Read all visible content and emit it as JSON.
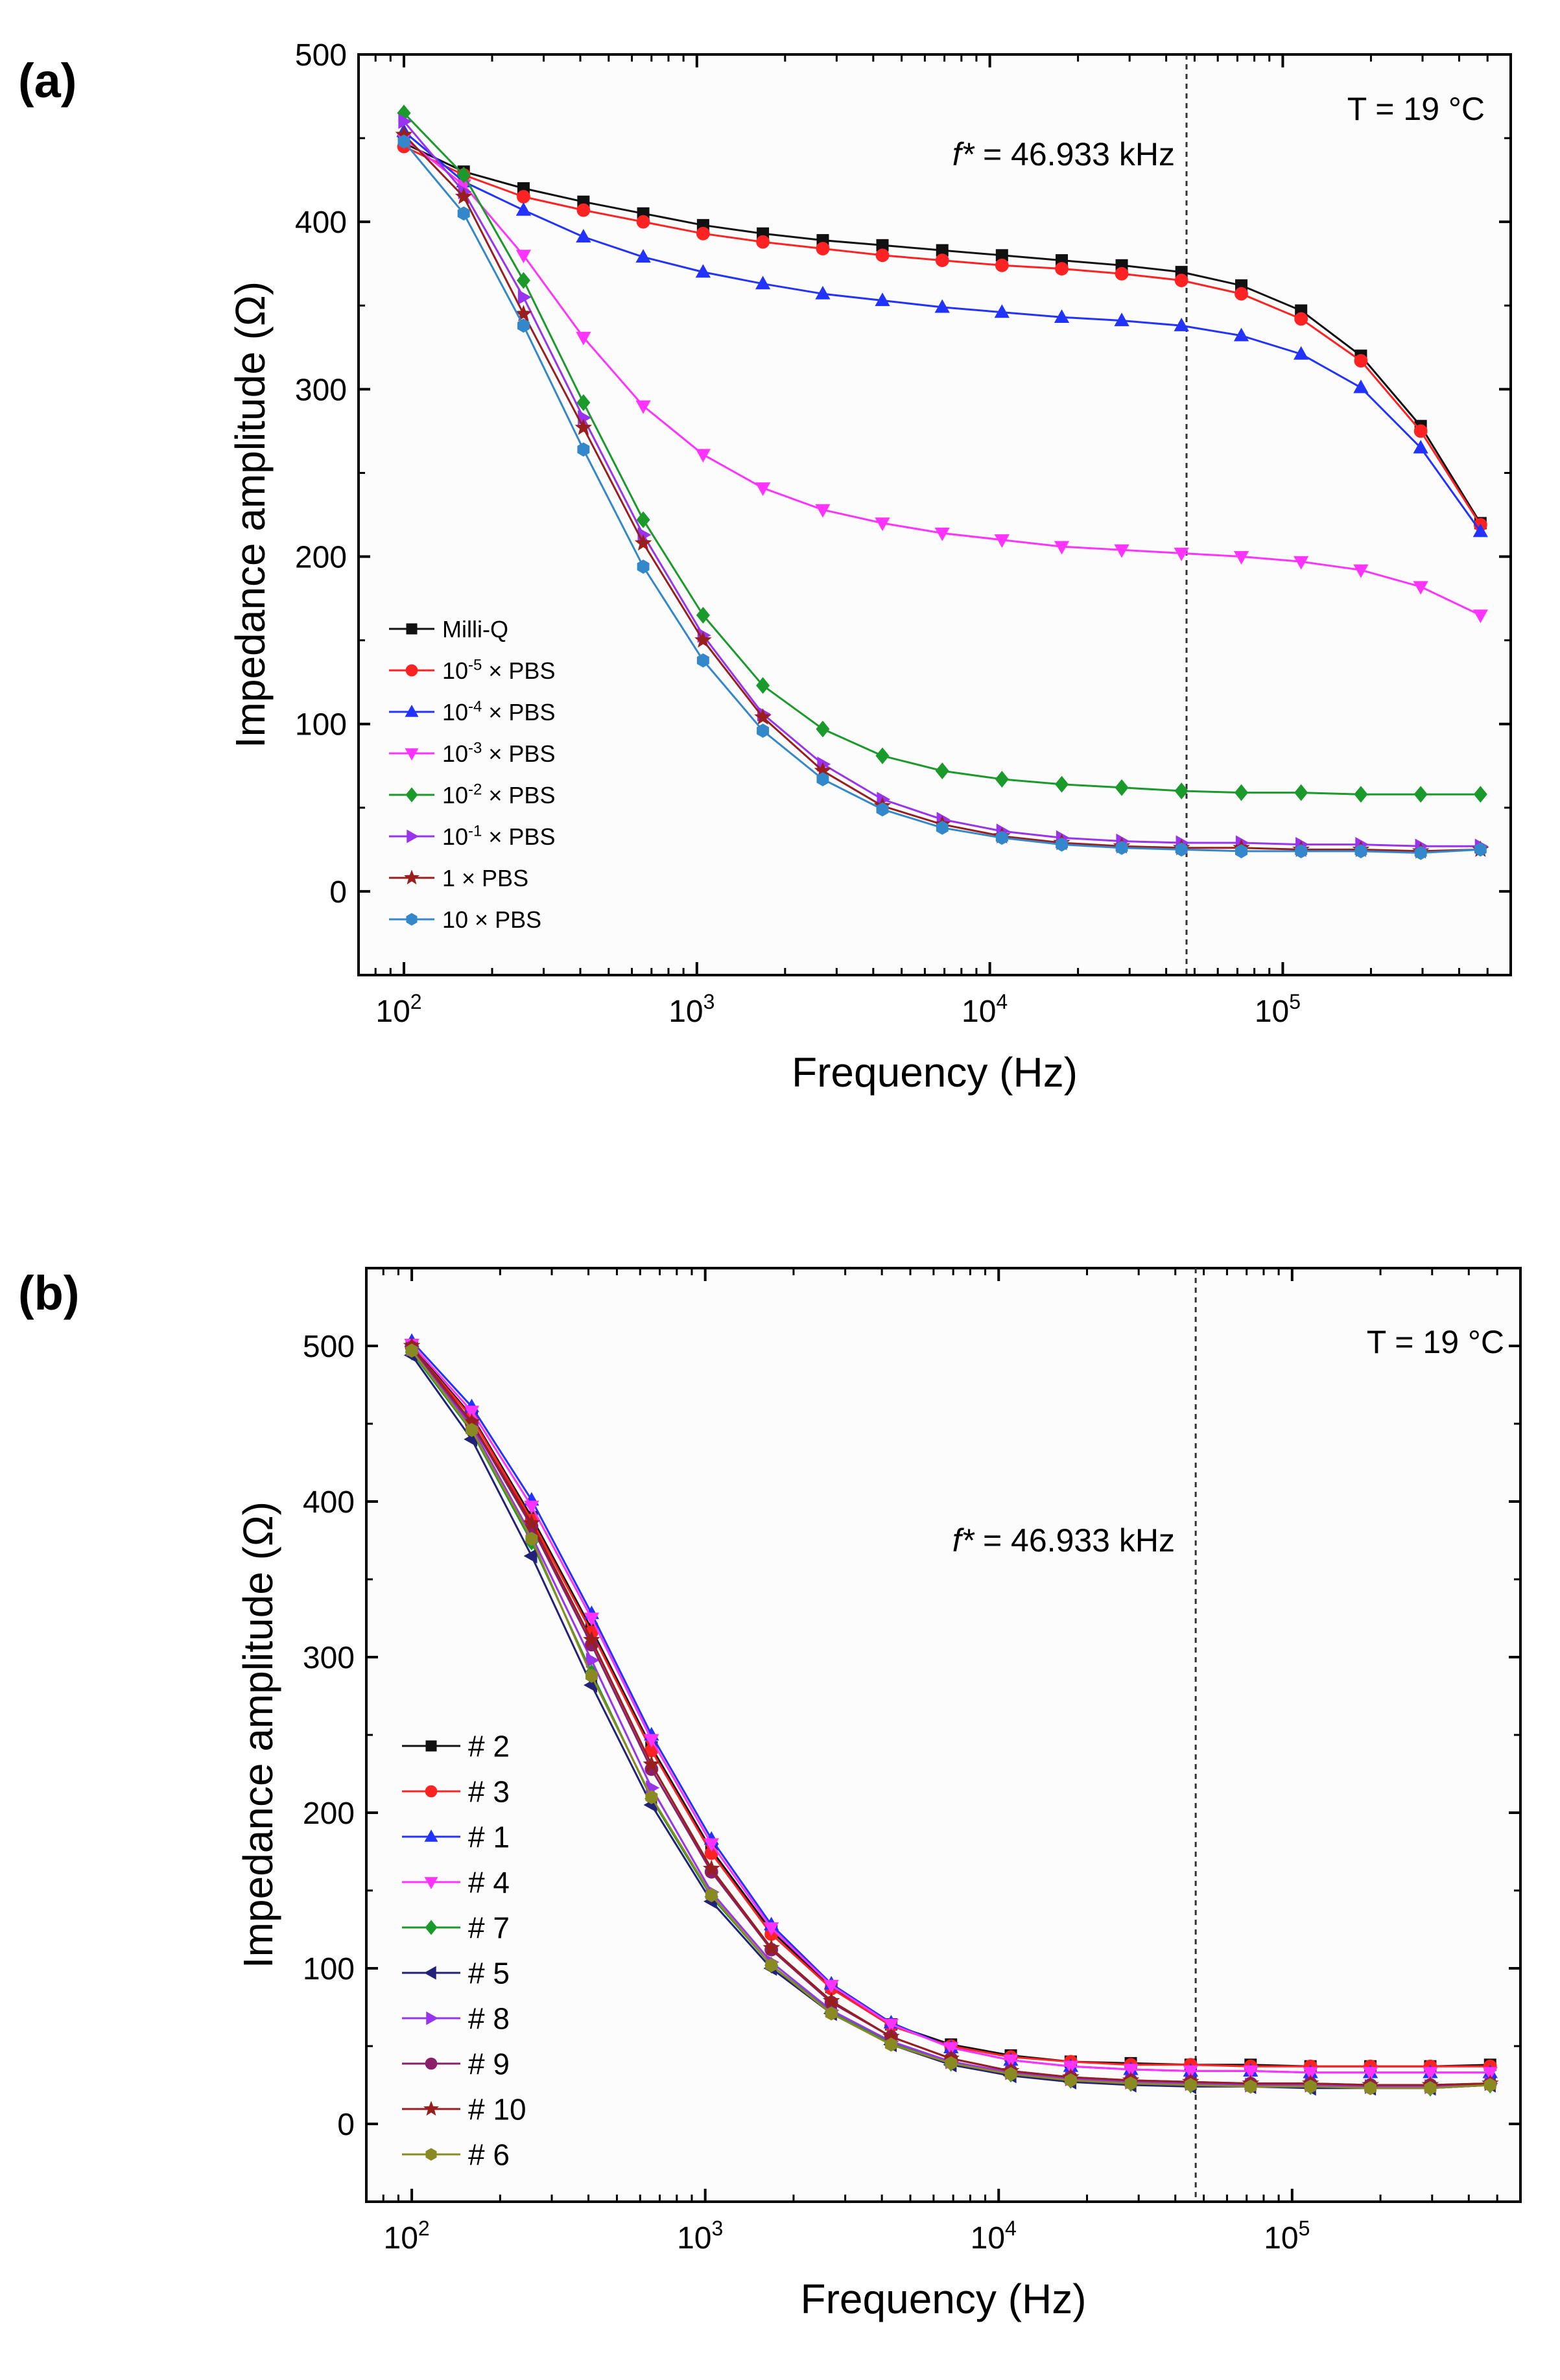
{
  "chart_data": [
    {
      "type": "line",
      "panel_label": "(a)",
      "xlabel": "Frequency (Hz)",
      "ylabel": "Impedance amplitude (Ω)",
      "xscale": "log",
      "xlim": [
        70,
        600000
      ],
      "ylim": [
        -50,
        500
      ],
      "yticks": [
        0,
        100,
        200,
        300,
        400,
        500
      ],
      "xtick_labels": [
        {
          "base": "10",
          "exp": "2"
        },
        {
          "base": "10",
          "exp": "3"
        },
        {
          "base": "10",
          "exp": "4"
        },
        {
          "base": "10",
          "exp": "5"
        }
      ],
      "temperature_label": "T = 19 °C",
      "reference_line": {
        "x": 46933,
        "label_prefix": "f*",
        "label_rest": " = 46.933 kHz"
      },
      "legend_position": "lower-left",
      "x": [
        100,
        160,
        256,
        410,
        656,
        1050,
        1680,
        2690,
        4300,
        6880,
        11000,
        17600,
        28200,
        45100,
        72200,
        115500,
        184800,
        295700,
        473000
      ],
      "series": [
        {
          "name": "Milli-Q",
          "prefix": "Milli-Q",
          "exp": "",
          "suffix": "",
          "color": "#111111",
          "marker": "square",
          "values": [
            447,
            430,
            420,
            412,
            405,
            398,
            393,
            389,
            386,
            383,
            380,
            377,
            374,
            370,
            362,
            347,
            320,
            278,
            220
          ]
        },
        {
          "name": "10-5 × PBS",
          "prefix": "10",
          "exp": "-5",
          "suffix": " × PBS",
          "color": "#ff2222",
          "marker": "circle",
          "values": [
            445,
            428,
            415,
            407,
            400,
            393,
            388,
            384,
            380,
            377,
            374,
            372,
            369,
            365,
            357,
            342,
            317,
            275,
            219
          ]
        },
        {
          "name": "10-4 × PBS",
          "prefix": "10",
          "exp": "-4",
          "suffix": " × PBS",
          "color": "#2233ff",
          "marker": "triangle-up",
          "values": [
            454,
            424,
            407,
            391,
            379,
            370,
            363,
            357,
            353,
            349,
            346,
            343,
            341,
            338,
            332,
            321,
            301,
            265,
            215
          ]
        },
        {
          "name": "10-3 × PBS",
          "prefix": "10",
          "exp": "-3",
          "suffix": " × PBS",
          "color": "#ff33ff",
          "marker": "triangle-down",
          "values": [
            450,
            422,
            380,
            331,
            290,
            261,
            241,
            228,
            220,
            214,
            210,
            206,
            204,
            202,
            200,
            197,
            192,
            182,
            165
          ]
        },
        {
          "name": "10-2 × PBS",
          "prefix": "10",
          "exp": "-2",
          "suffix": " × PBS",
          "color": "#1a9a2a",
          "marker": "diamond",
          "values": [
            465,
            428,
            365,
            292,
            222,
            165,
            123,
            97,
            81,
            72,
            67,
            64,
            62,
            60,
            59,
            59,
            58,
            58,
            58
          ]
        },
        {
          "name": "10-1 × PBS",
          "prefix": "10",
          "exp": "-1",
          "suffix": " × PBS",
          "color": "#9933ee",
          "marker": "triangle-right",
          "values": [
            460,
            418,
            355,
            283,
            213,
            153,
            106,
            76,
            55,
            43,
            36,
            32,
            30,
            29,
            29,
            28,
            28,
            27,
            27
          ]
        },
        {
          "name": "1 × PBS",
          "prefix": "1 × PBS",
          "exp": "",
          "suffix": "",
          "color": "#991f1f",
          "marker": "star",
          "values": [
            452,
            415,
            345,
            277,
            208,
            150,
            104,
            72,
            51,
            40,
            33,
            29,
            27,
            26,
            26,
            25,
            25,
            24,
            25
          ]
        },
        {
          "name": "10 × PBS",
          "prefix": "10 × PBS",
          "exp": "",
          "suffix": "",
          "color": "#3388cc",
          "marker": "hexagon",
          "values": [
            448,
            405,
            338,
            264,
            194,
            138,
            96,
            67,
            49,
            38,
            32,
            28,
            26,
            25,
            24,
            24,
            24,
            23,
            25
          ]
        }
      ]
    },
    {
      "type": "line",
      "panel_label": "(b)",
      "xlabel": "Frequency (Hz)",
      "ylabel": "Impedance amplitude (Ω)",
      "xscale": "log",
      "xlim": [
        70,
        600000
      ],
      "ylim": [
        -50,
        550
      ],
      "yticks": [
        0,
        100,
        200,
        300,
        400,
        500
      ],
      "xtick_labels": [
        {
          "base": "10",
          "exp": "2"
        },
        {
          "base": "10",
          "exp": "3"
        },
        {
          "base": "10",
          "exp": "4"
        },
        {
          "base": "10",
          "exp": "5"
        }
      ],
      "temperature_label": "T = 19 °C",
      "reference_line": {
        "x": 46933,
        "label_prefix": "f*",
        "label_rest": " = 46.933 kHz"
      },
      "legend_position": "lower-left",
      "x": [
        100,
        160,
        256,
        410,
        656,
        1050,
        1680,
        2690,
        4300,
        6880,
        11000,
        17600,
        28200,
        45100,
        72200,
        115500,
        184800,
        295700,
        473000
      ],
      "series": [
        {
          "name": "# 2",
          "prefix": "# 2",
          "exp": "",
          "suffix": "",
          "color": "#111111",
          "marker": "square",
          "values": [
            500,
            455,
            390,
            318,
            242,
            176,
            124,
            88,
            64,
            51,
            44,
            40,
            39,
            38,
            38,
            37,
            37,
            37,
            38
          ]
        },
        {
          "name": "# 3",
          "prefix": "# 3",
          "exp": "",
          "suffix": "",
          "color": "#ff2222",
          "marker": "circle",
          "values": [
            499,
            454,
            388,
            316,
            240,
            174,
            122,
            87,
            63,
            50,
            43,
            40,
            38,
            38,
            37,
            37,
            37,
            37,
            37
          ]
        },
        {
          "name": "# 1",
          "prefix": "# 1",
          "exp": "",
          "suffix": "",
          "color": "#2233ff",
          "marker": "triangle-up",
          "values": [
            503,
            461,
            401,
            328,
            250,
            183,
            128,
            90,
            65,
            49,
            41,
            37,
            35,
            34,
            34,
            33,
            33,
            33,
            33
          ]
        },
        {
          "name": "# 4",
          "prefix": "# 4",
          "exp": "",
          "suffix": "",
          "color": "#ff33ff",
          "marker": "triangle-down",
          "values": [
            501,
            458,
            397,
            325,
            247,
            180,
            126,
            89,
            64,
            49,
            41,
            37,
            35,
            34,
            34,
            33,
            33,
            33,
            33
          ]
        },
        {
          "name": "# 7",
          "prefix": "# 7",
          "exp": "",
          "suffix": "",
          "color": "#1a9a2a",
          "marker": "diamond",
          "values": [
            496,
            445,
            374,
            290,
            209,
            146,
            102,
            72,
            52,
            39,
            32,
            28,
            26,
            25,
            25,
            24,
            24,
            23,
            25
          ]
        },
        {
          "name": "# 5",
          "prefix": "# 5",
          "exp": "",
          "suffix": "",
          "color": "#22227a",
          "marker": "triangle-left",
          "values": [
            494,
            440,
            365,
            282,
            205,
            143,
            100,
            71,
            51,
            38,
            31,
            27,
            25,
            24,
            24,
            23,
            23,
            23,
            25
          ]
        },
        {
          "name": "# 8",
          "prefix": "# 8",
          "exp": "",
          "suffix": "",
          "color": "#9933ee",
          "marker": "triangle-right",
          "values": [
            498,
            448,
            378,
            298,
            216,
            149,
            104,
            73,
            53,
            40,
            33,
            29,
            27,
            26,
            25,
            25,
            24,
            24,
            26
          ]
        },
        {
          "name": "# 9",
          "prefix": "# 9",
          "exp": "",
          "suffix": "",
          "color": "#8a1f6a",
          "marker": "circle",
          "values": [
            499,
            450,
            384,
            308,
            228,
            162,
            112,
            78,
            56,
            42,
            34,
            30,
            28,
            27,
            26,
            26,
            25,
            25,
            26
          ]
        },
        {
          "name": "# 10",
          "prefix": "# 10",
          "exp": "",
          "suffix": "",
          "color": "#991f1f",
          "marker": "star",
          "values": [
            500,
            451,
            386,
            311,
            231,
            164,
            113,
            79,
            56,
            42,
            34,
            30,
            28,
            27,
            26,
            26,
            25,
            25,
            26
          ]
        },
        {
          "name": "# 6",
          "prefix": "# 6",
          "exp": "",
          "suffix": "",
          "color": "#8a8a22",
          "marker": "hexagon",
          "values": [
            497,
            446,
            376,
            288,
            210,
            147,
            102,
            71,
            51,
            39,
            32,
            28,
            26,
            25,
            24,
            24,
            23,
            23,
            25
          ]
        }
      ]
    }
  ]
}
